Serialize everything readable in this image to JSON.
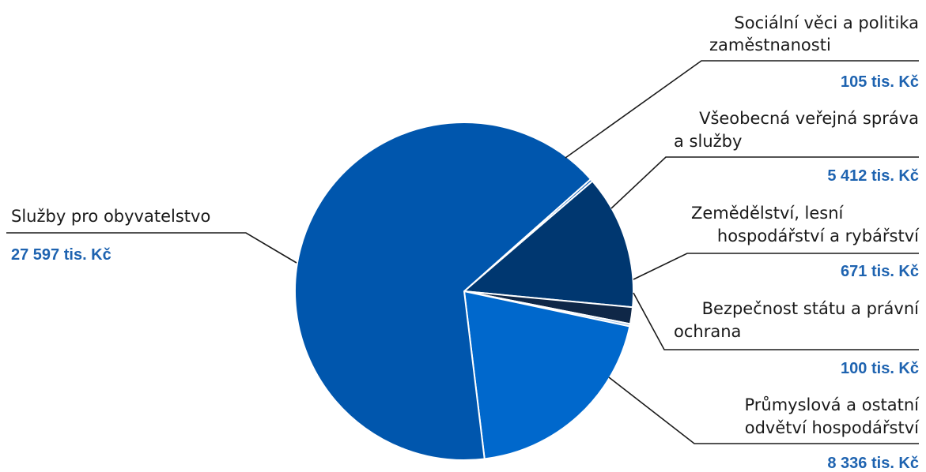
{
  "chart_data": {
    "type": "pie",
    "unit": "tis. Kč",
    "slices": [
      {
        "label": [
          "Sociální věci a politika",
          "zaměstnanosti"
        ],
        "value": 105,
        "value_text": "105 tis. Kč",
        "color": "#0a5bb5"
      },
      {
        "label": [
          "Všeobecná veřejná správa",
          "a služby"
        ],
        "value": 5412,
        "value_text": "5 412 tis. Kč",
        "color": "#003770"
      },
      {
        "label": [
          "Zemědělství, lesní",
          "hospodářství a rybářství"
        ],
        "value": 671,
        "value_text": "671 tis. Kč",
        "color": "#0f2747"
      },
      {
        "label": [
          "Bezpečnost státu a právní",
          "ochrana"
        ],
        "value": 100,
        "value_text": "100 tis. Kč",
        "color": "#9fc2e6"
      },
      {
        "label": [
          "Průmyslová a ostatní",
          "odvětví hospodářství"
        ],
        "value": 8336,
        "value_text": "8 336 tis. Kč",
        "color": "#0068cc"
      },
      {
        "label": [
          "Služby pro obyvatelstvo"
        ],
        "value": 27597,
        "value_text": "27 597 tis. Kč",
        "color": "#0056ad"
      }
    ],
    "value_color": "#1e63b0"
  }
}
